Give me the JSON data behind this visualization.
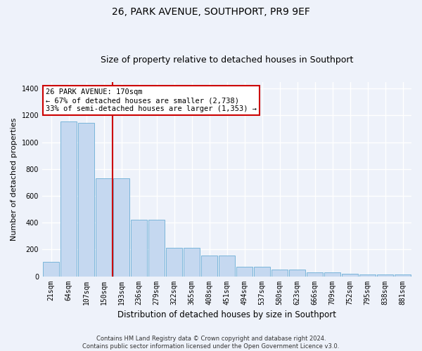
{
  "title": "26, PARK AVENUE, SOUTHPORT, PR9 9EF",
  "subtitle": "Size of property relative to detached houses in Southport",
  "xlabel": "Distribution of detached houses by size in Southport",
  "ylabel": "Number of detached properties",
  "categories": [
    "21sqm",
    "64sqm",
    "107sqm",
    "150sqm",
    "193sqm",
    "236sqm",
    "279sqm",
    "322sqm",
    "365sqm",
    "408sqm",
    "451sqm",
    "494sqm",
    "537sqm",
    "580sqm",
    "623sqm",
    "666sqm",
    "709sqm",
    "752sqm",
    "795sqm",
    "838sqm",
    "881sqm"
  ],
  "bar_heights": [
    110,
    1155,
    1145,
    730,
    730,
    420,
    420,
    210,
    210,
    155,
    155,
    70,
    70,
    50,
    48,
    28,
    28,
    18,
    16,
    14,
    14
  ],
  "bar_color": "#c5d8f0",
  "bar_edge_color": "#6aaed6",
  "vline_x_index": 3.5,
  "vline_color": "#cc0000",
  "annotation_text": "26 PARK AVENUE: 170sqm\n← 67% of detached houses are smaller (2,738)\n33% of semi-detached houses are larger (1,353) →",
  "annotation_box_facecolor": "#ffffff",
  "annotation_box_edgecolor": "#cc0000",
  "ylim": [
    0,
    1450
  ],
  "yticks": [
    0,
    200,
    400,
    600,
    800,
    1000,
    1200,
    1400
  ],
  "footer": "Contains HM Land Registry data © Crown copyright and database right 2024.\nContains public sector information licensed under the Open Government Licence v3.0.",
  "bg_color": "#eef2fa",
  "grid_color": "#ffffff",
  "title_fontsize": 10,
  "subtitle_fontsize": 9,
  "ylabel_fontsize": 8,
  "xlabel_fontsize": 8.5,
  "tick_fontsize": 7,
  "annotation_fontsize": 7.5,
  "footer_fontsize": 6
}
